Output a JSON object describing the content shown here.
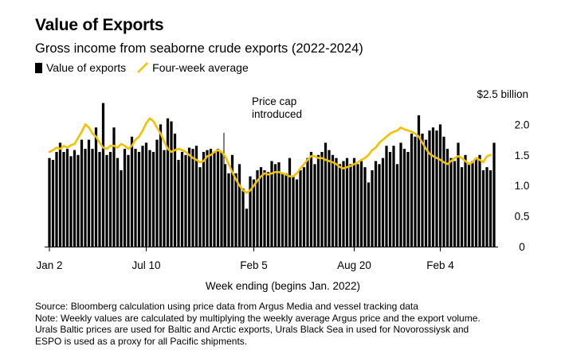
{
  "header": {
    "title": "Value of Exports",
    "subtitle": "Gross income from seaborne crude exports (2022-2024)"
  },
  "legend": {
    "bars_label": "Value of exports",
    "line_label": "Four-week average"
  },
  "colors": {
    "bars": "#000000",
    "line": "#f2c200",
    "axis": "#000000"
  },
  "chart_data": {
    "type": "bar",
    "unit": "billion USD",
    "xlabel": "Week ending (begins Jan. 2022)",
    "ylabel": "",
    "ylim": [
      0,
      2.5
    ],
    "y_ticks": [
      "0",
      "0.5",
      "1.0",
      "1.5",
      "2.0",
      "$2.5 billion"
    ],
    "y_tick_values": [
      0,
      0.5,
      1.0,
      1.5,
      2.0,
      2.5
    ],
    "x_ticks": [
      {
        "label": "Jan 2",
        "index": 0
      },
      {
        "label": "Jul 10",
        "index": 27
      },
      {
        "label": "Feb 5",
        "index": 57
      },
      {
        "label": "Aug 20",
        "index": 85
      },
      {
        "label": "Feb 4",
        "index": 109
      }
    ],
    "annotation": {
      "text_line1": "Price cap",
      "text_line2": "introduced",
      "index": 48
    },
    "series": [
      {
        "name": "Value of exports",
        "kind": "bar",
        "values": [
          1.45,
          1.42,
          1.55,
          1.7,
          1.55,
          1.6,
          1.48,
          1.58,
          1.5,
          1.75,
          1.6,
          1.75,
          1.6,
          1.95,
          1.55,
          2.35,
          1.5,
          1.55,
          1.95,
          1.45,
          1.25,
          1.6,
          1.5,
          1.8,
          1.6,
          1.55,
          1.65,
          1.7,
          1.58,
          1.55,
          1.75,
          2.0,
          1.58,
          2.1,
          2.05,
          1.85,
          1.42,
          1.55,
          1.5,
          1.62,
          1.6,
          1.65,
          1.3,
          1.55,
          1.58,
          1.6,
          1.55,
          1.6,
          1.55,
          1.35,
          1.2,
          1.5,
          1.2,
          1.35,
          0.95,
          0.62,
          1.15,
          1.1,
          1.25,
          1.3,
          1.25,
          1.22,
          1.4,
          1.35,
          1.38,
          1.2,
          1.2,
          1.45,
          1.15,
          1.1,
          1.25,
          1.3,
          1.45,
          1.55,
          1.35,
          1.5,
          1.55,
          1.7,
          1.58,
          1.5,
          1.45,
          1.35,
          1.4,
          1.45,
          1.35,
          1.45,
          1.35,
          1.4,
          1.3,
          1.05,
          1.25,
          1.4,
          1.35,
          1.45,
          1.65,
          1.55,
          1.65,
          1.35,
          1.7,
          1.6,
          1.55,
          1.85,
          1.8,
          2.15,
          1.85,
          1.75,
          1.9,
          1.95,
          1.9,
          2.0,
          1.8,
          1.6,
          1.45,
          1.4,
          1.7,
          1.3,
          1.5,
          1.35,
          1.4,
          1.45,
          1.5,
          1.25,
          1.3,
          1.25,
          1.7
        ]
      },
      {
        "name": "Four-week average",
        "kind": "line",
        "values": [
          1.55,
          1.58,
          1.62,
          1.6,
          1.65,
          1.62,
          1.66,
          1.68,
          1.78,
          1.88,
          2.0,
          1.95,
          1.85,
          1.8,
          1.7,
          1.62,
          1.6,
          1.65,
          1.65,
          1.62,
          1.68,
          1.65,
          1.6,
          1.65,
          1.75,
          1.8,
          1.9,
          2.02,
          2.1,
          2.05,
          1.95,
          1.85,
          1.72,
          1.6,
          1.55,
          1.58,
          1.6,
          1.58,
          1.55,
          1.5,
          1.45,
          1.42,
          1.38,
          1.4,
          1.48,
          1.5,
          1.55,
          1.58,
          1.55,
          1.48,
          1.35,
          1.22,
          1.1,
          1.0,
          0.92,
          0.88,
          0.92,
          1.0,
          1.08,
          1.15,
          1.2,
          1.18,
          1.2,
          1.22,
          1.22,
          1.2,
          1.18,
          1.15,
          1.15,
          1.2,
          1.28,
          1.35,
          1.42,
          1.48,
          1.48,
          1.45,
          1.45,
          1.42,
          1.4,
          1.38,
          1.35,
          1.3,
          1.28,
          1.3,
          1.32,
          1.35,
          1.38,
          1.42,
          1.45,
          1.5,
          1.58,
          1.62,
          1.7,
          1.75,
          1.8,
          1.85,
          1.88,
          1.9,
          1.95,
          1.92,
          1.9,
          1.88,
          1.85,
          1.8,
          1.7,
          1.6,
          1.52,
          1.48,
          1.45,
          1.42,
          1.38,
          1.35,
          1.4,
          1.45,
          1.48,
          1.45,
          1.4,
          1.35,
          1.38,
          1.45,
          1.42,
          1.38,
          1.48,
          1.5
        ]
      }
    ],
    "grid": false,
    "legend_position": "top-left"
  },
  "footnote": {
    "line1": "Source: Bloomberg calculation using price data from Argus Media and vessel tracking data",
    "line2": "Note: Weekly values are calculated by multiplying the weekly average Argus price and the export volume.",
    "line3": "Urals Baltic prices are used for Baltic and Arctic exports, Urals Black Sea in used for Novorossiysk and",
    "line4": "ESPO is used as a proxy for all Pacific shipments."
  }
}
